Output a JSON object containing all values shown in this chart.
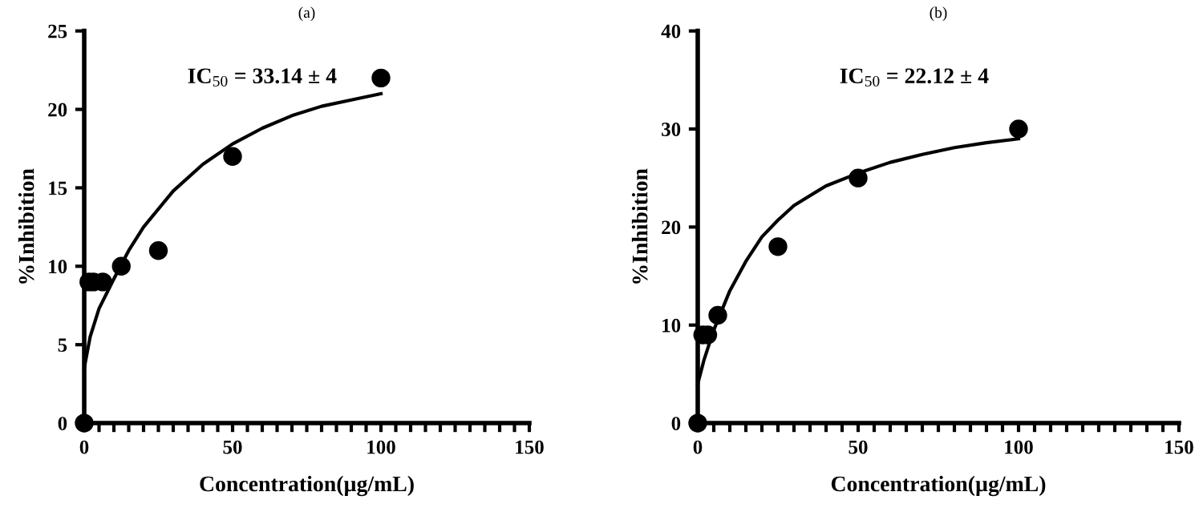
{
  "chart_data": [
    {
      "type": "scatter",
      "title": "(a)",
      "xlabel": "Concentration(µg/mL)",
      "ylabel": "%Inhibition",
      "annotations": [
        "IC$_{50}$ = 33.14 ± 4"
      ],
      "series": [
        {
          "color": "#000000",
          "marker": "circle",
          "x": [
            0,
            1.56,
            3.125,
            6.25,
            12.5,
            25,
            50,
            100
          ],
          "values": [
            0,
            9,
            9,
            9,
            10,
            11,
            17,
            22
          ]
        },
        {
          "type": "line",
          "color": "#000000",
          "marker": "none",
          "line_style": "solid",
          "x": [
            0,
            2,
            5,
            10,
            15,
            20,
            30,
            40,
            50,
            60,
            70,
            80,
            90,
            100
          ],
          "values": [
            3.5,
            5.5,
            7.3,
            9.2,
            11,
            12.5,
            14.8,
            16.5,
            17.8,
            18.8,
            19.6,
            20.2,
            20.6,
            21
          ]
        }
      ],
      "xlim": [
        0,
        150
      ],
      "ylim": [
        0,
        25
      ],
      "xticks": [
        0,
        {
          "value": 5,
          "label": null
        },
        {
          "value": 10,
          "label": null
        },
        {
          "value": 15,
          "label": null
        },
        {
          "value": 20,
          "label": null
        },
        {
          "value": 25,
          "label": null
        },
        {
          "value": 30,
          "label": null
        },
        {
          "value": 35,
          "label": null
        },
        {
          "value": 40,
          "label": null
        },
        {
          "value": 45,
          "label": null
        },
        50,
        {
          "value": 55,
          "label": null
        },
        {
          "value": 60,
          "label": null
        },
        {
          "value": 65,
          "label": null
        },
        {
          "value": 70,
          "label": null
        },
        {
          "value": 75,
          "label": null
        },
        {
          "value": 80,
          "label": null
        },
        {
          "value": 85,
          "label": null
        },
        {
          "value": 90,
          "label": null
        },
        {
          "value": 95,
          "label": null
        },
        100,
        {
          "value": 105,
          "label": null
        },
        {
          "value": 110,
          "label": null
        },
        {
          "value": 115,
          "label": null
        },
        {
          "value": 120,
          "label": null
        },
        {
          "value": 125,
          "label": null
        },
        {
          "value": 130,
          "label": null
        },
        {
          "value": 135,
          "label": null
        },
        {
          "value": 140,
          "label": null
        },
        {
          "value": 145,
          "label": null
        },
        150
      ],
      "yticks": [
        0,
        5,
        10,
        15,
        20,
        25
      ],
      "grid": false,
      "legend": false
    },
    {
      "type": "scatter",
      "title": "(b)",
      "xlabel": "Concentration(µg/mL)",
      "ylabel": "%Inhibition",
      "annotations": [
        "IC$_{50}$ = 22.12 ± 4"
      ],
      "series": [
        {
          "color": "#000000",
          "marker": "circle",
          "x": [
            0,
            1.56,
            3.125,
            6.25,
            25,
            50,
            100
          ],
          "values": [
            0,
            9,
            9,
            11,
            18,
            25,
            30
          ]
        },
        {
          "type": "line",
          "color": "#000000",
          "marker": "none",
          "line_style": "solid",
          "x": [
            0,
            2,
            5,
            10,
            15,
            20,
            25,
            30,
            40,
            50,
            60,
            70,
            80,
            90,
            100
          ],
          "values": [
            4,
            6.5,
            9.5,
            13.5,
            16.5,
            19,
            20.7,
            22.2,
            24.2,
            25.5,
            26.6,
            27.4,
            28.1,
            28.6,
            29
          ]
        }
      ],
      "xlim": [
        0,
        150
      ],
      "ylim": [
        0,
        40
      ],
      "xticks": [
        0,
        {
          "value": 5,
          "label": null
        },
        {
          "value": 10,
          "label": null
        },
        {
          "value": 15,
          "label": null
        },
        {
          "value": 20,
          "label": null
        },
        {
          "value": 25,
          "label": null
        },
        {
          "value": 30,
          "label": null
        },
        {
          "value": 35,
          "label": null
        },
        {
          "value": 40,
          "label": null
        },
        {
          "value": 45,
          "label": null
        },
        50,
        {
          "value": 55,
          "label": null
        },
        {
          "value": 60,
          "label": null
        },
        {
          "value": 65,
          "label": null
        },
        {
          "value": 70,
          "label": null
        },
        {
          "value": 75,
          "label": null
        },
        {
          "value": 80,
          "label": null
        },
        {
          "value": 85,
          "label": null
        },
        {
          "value": 90,
          "label": null
        },
        {
          "value": 95,
          "label": null
        },
        100,
        {
          "value": 105,
          "label": null
        },
        {
          "value": 110,
          "label": null
        },
        {
          "value": 115,
          "label": null
        },
        {
          "value": 120,
          "label": null
        },
        {
          "value": 125,
          "label": null
        },
        {
          "value": 130,
          "label": null
        },
        {
          "value": 135,
          "label": null
        },
        {
          "value": 140,
          "label": null
        },
        {
          "value": 145,
          "label": null
        },
        150
      ],
      "yticks": [
        0,
        10,
        20,
        30,
        40
      ],
      "grid": false,
      "legend": false
    }
  ]
}
